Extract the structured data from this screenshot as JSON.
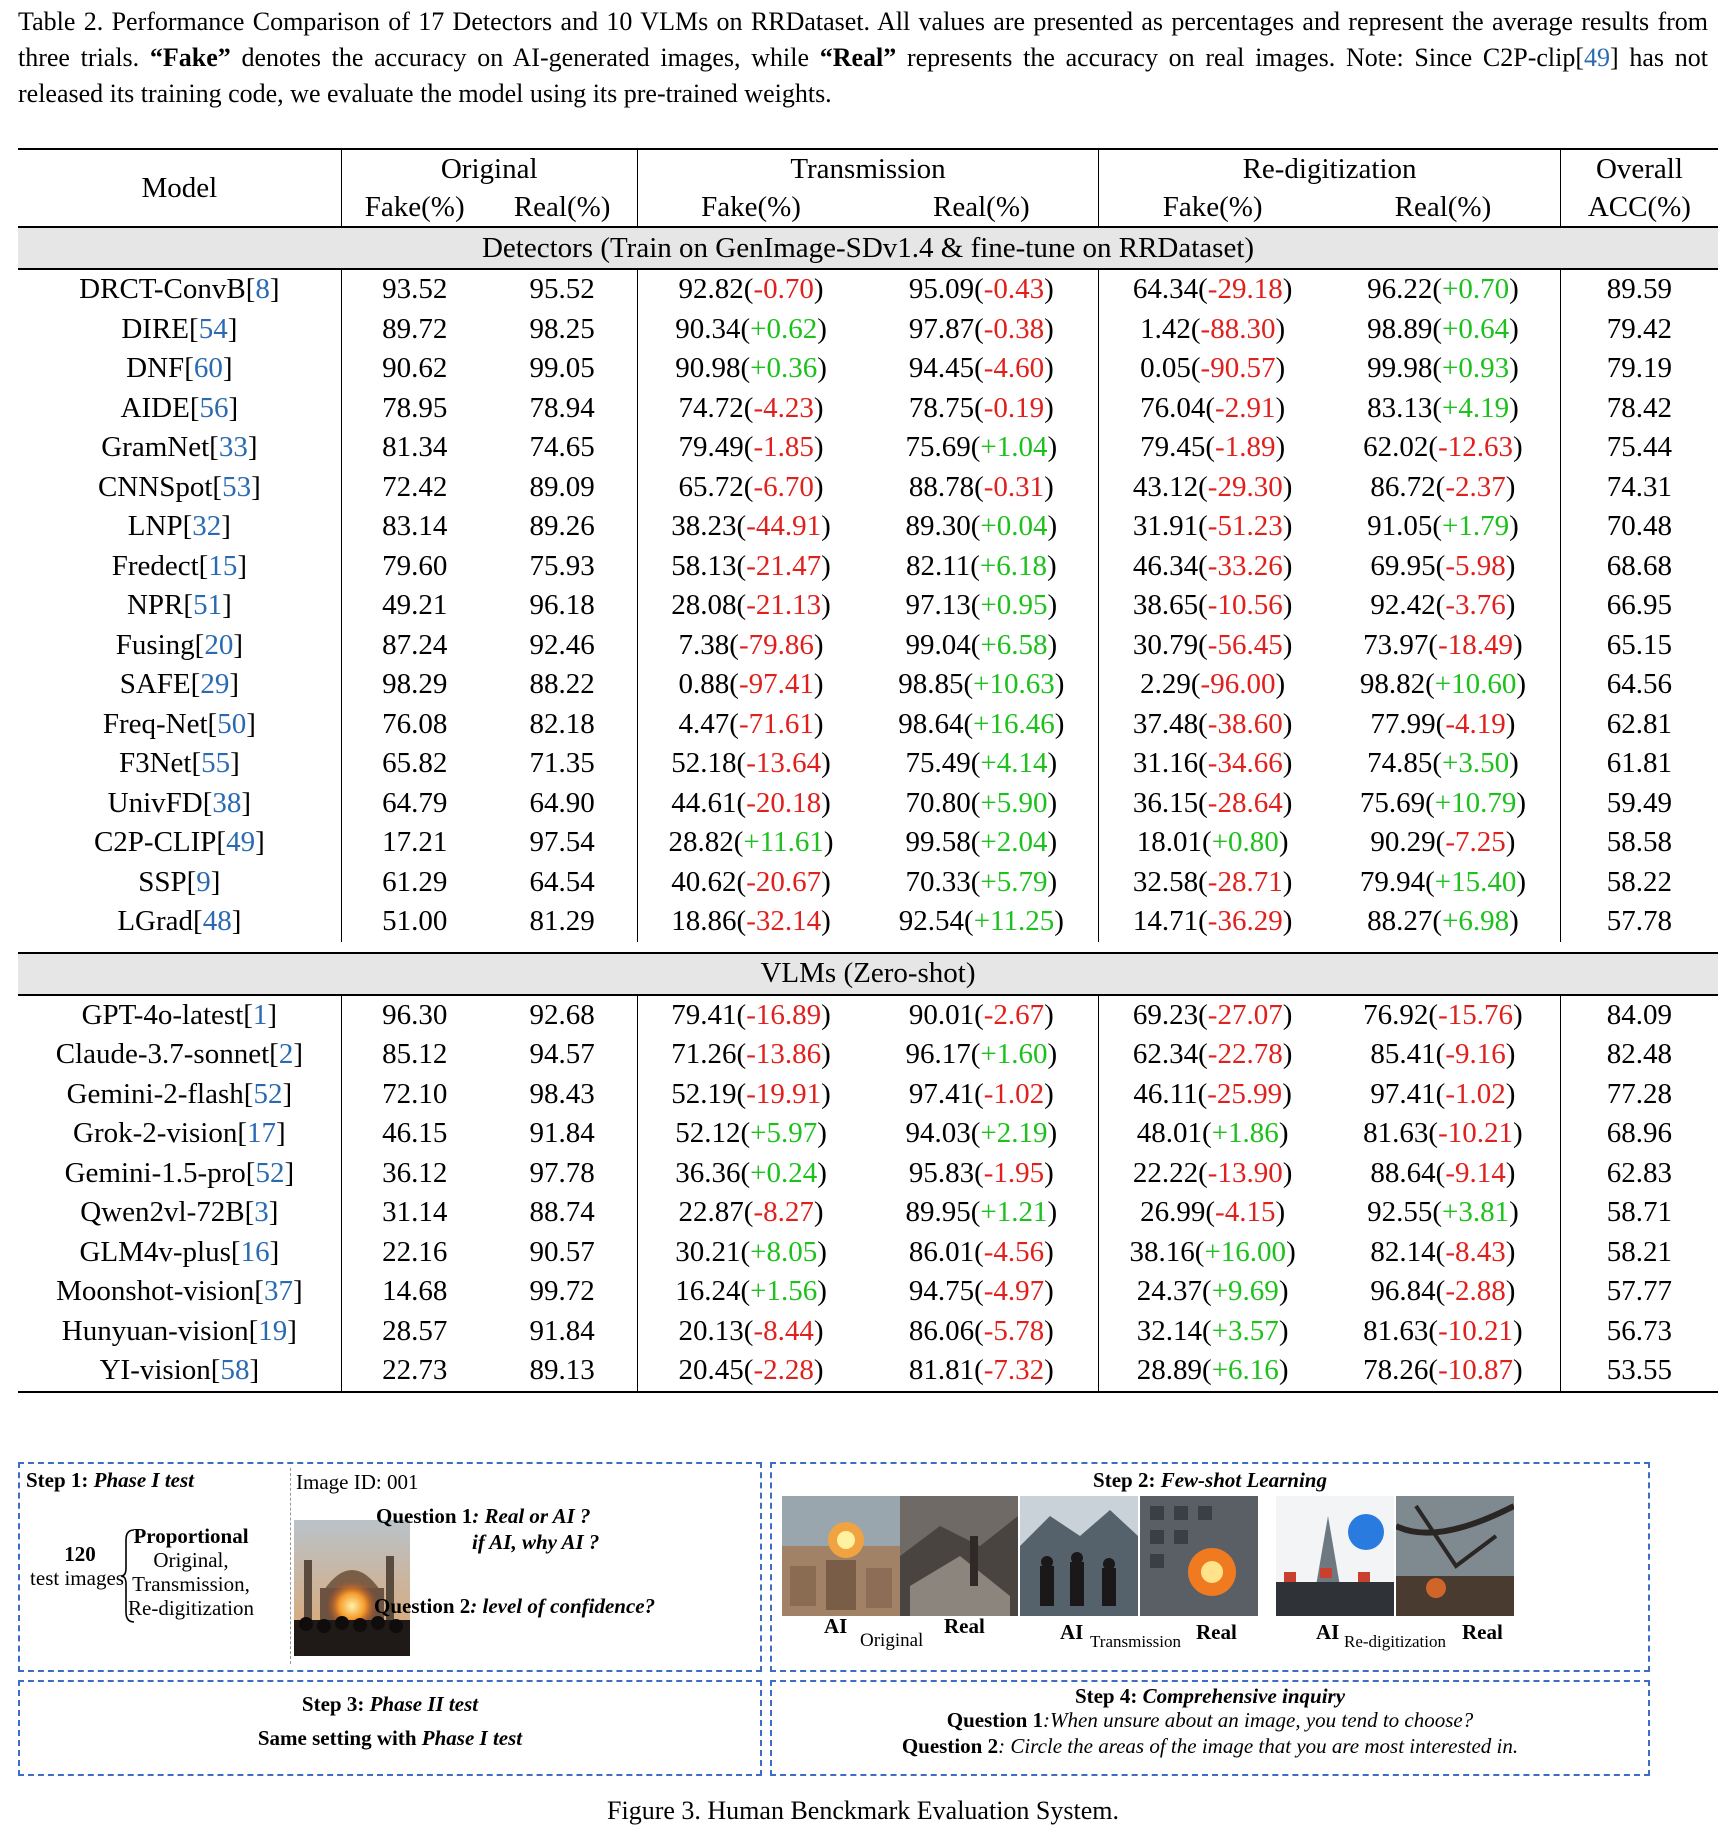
{
  "caption_top": {
    "prefix": "Table 2.  Performance Comparison of 17 Detectors and 10 VLMs on RRDataset.  All values are presented as percentages and represent the average results from three trials. ",
    "fake_term": "“Fake”",
    "mid1": " denotes the accuracy on AI-generated images, while ",
    "real_term": "“Real”",
    "mid2": " represents the accuracy on real images. Note: Since C2P-clip[",
    "cite": "49",
    "suffix": "] has not released its training code, we evaluate the model using its pre-trained weights."
  },
  "table": {
    "header": {
      "model": "Model",
      "original": "Original",
      "transmission": "Transmission",
      "redigitization": "Re-digitization",
      "overall": "Overall",
      "fake": "Fake(%)",
      "real": "Real(%)",
      "acc": "ACC(%)"
    },
    "sections": [
      {
        "title": "Detectors (Train on GenImage-SDv1.4 & fine-tune on RRDataset)",
        "rows": [
          {
            "name": "DRCT-ConvB",
            "ref": "8",
            "of": "93.52",
            "or": "95.52",
            "tf": "92.82",
            "tfd": "-0.70",
            "tr": "95.09",
            "trd": "-0.43",
            "rf": "64.34",
            "rfd": "-29.18",
            "rr": "96.22",
            "rrd": "+0.70",
            "acc": "89.59"
          },
          {
            "name": "DIRE",
            "ref": "54",
            "of": "89.72",
            "or": "98.25",
            "tf": "90.34",
            "tfd": "+0.62",
            "tr": "97.87",
            "trd": "-0.38",
            "rf": "1.42",
            "rfd": "-88.30",
            "rr": "98.89",
            "rrd": "+0.64",
            "acc": "79.42"
          },
          {
            "name": "DNF",
            "ref": "60",
            "of": "90.62",
            "or": "99.05",
            "tf": "90.98",
            "tfd": "+0.36",
            "tr": "94.45",
            "trd": "-4.60",
            "rf": "0.05",
            "rfd": "-90.57",
            "rr": "99.98",
            "rrd": "+0.93",
            "acc": "79.19"
          },
          {
            "name": "AIDE",
            "ref": "56",
            "of": "78.95",
            "or": "78.94",
            "tf": "74.72",
            "tfd": "-4.23",
            "tr": "78.75",
            "trd": "-0.19",
            "rf": "76.04",
            "rfd": "-2.91",
            "rr": "83.13",
            "rrd": "+4.19",
            "acc": "78.42"
          },
          {
            "name": "GramNet",
            "ref": "33",
            "of": "81.34",
            "or": "74.65",
            "tf": "79.49",
            "tfd": "-1.85",
            "tr": "75.69",
            "trd": "+1.04",
            "rf": "79.45",
            "rfd": "-1.89",
            "rr": "62.02",
            "rrd": "-12.63",
            "acc": "75.44"
          },
          {
            "name": "CNNSpot",
            "ref": "53",
            "of": "72.42",
            "or": "89.09",
            "tf": "65.72",
            "tfd": "-6.70",
            "tr": "88.78",
            "trd": "-0.31",
            "rf": "43.12",
            "rfd": "-29.30",
            "rr": "86.72",
            "rrd": "-2.37",
            "acc": "74.31"
          },
          {
            "name": "LNP",
            "ref": "32",
            "of": "83.14",
            "or": "89.26",
            "tf": "38.23",
            "tfd": "-44.91",
            "tr": "89.30",
            "trd": "+0.04",
            "rf": "31.91",
            "rfd": "-51.23",
            "rr": "91.05",
            "rrd": "+1.79",
            "acc": "70.48"
          },
          {
            "name": "Fredect",
            "ref": "15",
            "of": "79.60",
            "or": "75.93",
            "tf": "58.13",
            "tfd": "-21.47",
            "tr": "82.11",
            "trd": "+6.18",
            "rf": "46.34",
            "rfd": "-33.26",
            "rr": "69.95",
            "rrd": "-5.98",
            "acc": "68.68"
          },
          {
            "name": "NPR",
            "ref": "51",
            "of": "49.21",
            "or": "96.18",
            "tf": "28.08",
            "tfd": "-21.13",
            "tr": "97.13",
            "trd": "+0.95",
            "rf": "38.65",
            "rfd": "-10.56",
            "rr": "92.42",
            "rrd": "-3.76",
            "acc": "66.95"
          },
          {
            "name": "Fusing",
            "ref": "20",
            "of": "87.24",
            "or": "92.46",
            "tf": "7.38",
            "tfd": "-79.86",
            "tr": "99.04",
            "trd": "+6.58",
            "rf": "30.79",
            "rfd": "-56.45",
            "rr": "73.97",
            "rrd": "-18.49",
            "acc": "65.15"
          },
          {
            "name": "SAFE",
            "ref": "29",
            "of": "98.29",
            "or": "88.22",
            "tf": "0.88",
            "tfd": "-97.41",
            "tr": "98.85",
            "trd": "+10.63",
            "rf": "2.29",
            "rfd": "-96.00",
            "rr": "98.82",
            "rrd": "+10.60",
            "acc": "64.56"
          },
          {
            "name": "Freq-Net",
            "ref": "50",
            "of": "76.08",
            "or": "82.18",
            "tf": "4.47",
            "tfd": "-71.61",
            "tr": "98.64",
            "trd": "+16.46",
            "rf": "37.48",
            "rfd": "-38.60",
            "rr": "77.99",
            "rrd": "-4.19",
            "acc": "62.81"
          },
          {
            "name": "F3Net",
            "ref": "55",
            "of": "65.82",
            "or": "71.35",
            "tf": "52.18",
            "tfd": "-13.64",
            "tr": "75.49",
            "trd": "+4.14",
            "rf": "31.16",
            "rfd": "-34.66",
            "rr": "74.85",
            "rrd": "+3.50",
            "acc": "61.81"
          },
          {
            "name": "UnivFD",
            "ref": "38",
            "of": "64.79",
            "or": "64.90",
            "tf": "44.61",
            "tfd": "-20.18",
            "tr": "70.80",
            "trd": "+5.90",
            "rf": "36.15",
            "rfd": "-28.64",
            "rr": "75.69",
            "rrd": "+10.79",
            "acc": "59.49"
          },
          {
            "name": "C2P-CLIP",
            "ref": "49",
            "of": "17.21",
            "or": "97.54",
            "tf": "28.82",
            "tfd": "+11.61",
            "tr": "99.58",
            "trd": "+2.04",
            "rf": "18.01",
            "rfd": "+0.80",
            "rr": "90.29",
            "rrd": "-7.25",
            "acc": "58.58"
          },
          {
            "name": "SSP",
            "ref": "9",
            "of": "61.29",
            "or": "64.54",
            "tf": "40.62",
            "tfd": "-20.67",
            "tr": "70.33",
            "trd": "+5.79",
            "rf": "32.58",
            "rfd": "-28.71",
            "rr": "79.94",
            "rrd": "+15.40",
            "acc": "58.22"
          },
          {
            "name": "LGrad",
            "ref": "48",
            "of": "51.00",
            "or": "81.29",
            "tf": "18.86",
            "tfd": "-32.14",
            "tr": "92.54",
            "trd": "+11.25",
            "rf": "14.71",
            "rfd": "-36.29",
            "rr": "88.27",
            "rrd": "+6.98",
            "acc": "57.78"
          }
        ]
      },
      {
        "title": "VLMs (Zero-shot)",
        "rows": [
          {
            "name": "GPT-4o-latest",
            "ref": "1",
            "of": "96.30",
            "or": "92.68",
            "tf": "79.41",
            "tfd": "-16.89",
            "tr": "90.01",
            "trd": "-2.67",
            "rf": "69.23",
            "rfd": "-27.07",
            "rr": "76.92",
            "rrd": "-15.76",
            "acc": "84.09"
          },
          {
            "name": "Claude-3.7-sonnet",
            "ref": "2",
            "of": "85.12",
            "or": "94.57",
            "tf": "71.26",
            "tfd": "-13.86",
            "tr": "96.17",
            "trd": "+1.60",
            "rf": "62.34",
            "rfd": "-22.78",
            "rr": "85.41",
            "rrd": "-9.16",
            "acc": "82.48"
          },
          {
            "name": "Gemini-2-flash",
            "ref": "52",
            "of": "72.10",
            "or": "98.43",
            "tf": "52.19",
            "tfd": "-19.91",
            "tr": "97.41",
            "trd": "-1.02",
            "rf": "46.11",
            "rfd": "-25.99",
            "rr": "97.41",
            "rrd": "-1.02",
            "acc": "77.28"
          },
          {
            "name": "Grok-2-vision",
            "ref": "17",
            "of": "46.15",
            "or": "91.84",
            "tf": "52.12",
            "tfd": "+5.97",
            "tr": "94.03",
            "trd": "+2.19",
            "rf": "48.01",
            "rfd": "+1.86",
            "rr": "81.63",
            "rrd": "-10.21",
            "acc": "68.96"
          },
          {
            "name": "Gemini-1.5-pro",
            "ref": "52",
            "of": "36.12",
            "or": "97.78",
            "tf": "36.36",
            "tfd": "+0.24",
            "tr": "95.83",
            "trd": "-1.95",
            "rf": "22.22",
            "rfd": "-13.90",
            "rr": "88.64",
            "rrd": "-9.14",
            "acc": "62.83"
          },
          {
            "name": "Qwen2vl-72B",
            "ref": "3",
            "of": "31.14",
            "or": "88.74",
            "tf": "22.87",
            "tfd": "-8.27",
            "tr": "89.95",
            "trd": "+1.21",
            "rf": "26.99",
            "rfd": "-4.15",
            "rr": "92.55",
            "rrd": "+3.81",
            "acc": "58.71"
          },
          {
            "name": "GLM4v-plus",
            "ref": "16",
            "of": "22.16",
            "or": "90.57",
            "tf": "30.21",
            "tfd": "+8.05",
            "tr": "86.01",
            "trd": "-4.56",
            "rf": "38.16",
            "rfd": "+16.00",
            "rr": "82.14",
            "rrd": "-8.43",
            "acc": "58.21"
          },
          {
            "name": "Moonshot-vision",
            "ref": "37",
            "of": "14.68",
            "or": "99.72",
            "tf": "16.24",
            "tfd": "+1.56",
            "tr": "94.75",
            "trd": "-4.97",
            "rf": "24.37",
            "rfd": "+9.69",
            "rr": "96.84",
            "rrd": "-2.88",
            "acc": "57.77"
          },
          {
            "name": "Hunyuan-vision",
            "ref": "19",
            "of": "28.57",
            "or": "91.84",
            "tf": "20.13",
            "tfd": "-8.44",
            "tr": "86.06",
            "trd": "-5.78",
            "rf": "32.14",
            "rfd": "+3.57",
            "rr": "81.63",
            "rrd": "-10.21",
            "acc": "56.73"
          },
          {
            "name": "YI-vision",
            "ref": "58",
            "of": "22.73",
            "or": "89.13",
            "tf": "20.45",
            "tfd": "-2.28",
            "tr": "81.81",
            "trd": "-7.32",
            "rf": "28.89",
            "rfd": "+6.16",
            "rr": "78.26",
            "rrd": "-10.87",
            "acc": "53.55"
          }
        ]
      }
    ]
  },
  "figure": {
    "step1": {
      "label": "Step 1: ",
      "title": "Phase I test",
      "count": "120",
      "count_label": "test images",
      "prop": "Proportional",
      "items": [
        "Original,",
        "Transmission,",
        "Re-digitization"
      ],
      "image_id": "Image ID: 001"
    },
    "questions": {
      "q1_label": "Question 1",
      "q1_a": ": Real or AI ?",
      "q1_b": "if AI, why AI ?",
      "q2_label": "Question 2",
      "q2_text": ": level of confidence?"
    },
    "step2": {
      "label": "Step 2: ",
      "title": "Few-shot Learning",
      "ai": "AI",
      "real": "Real",
      "original": "Original",
      "transmission": "Transmission",
      "redigitization": "Re-digitization"
    },
    "step3": {
      "label": "Step 3: ",
      "title": "Phase II test",
      "line_prefix": "Same setting  with ",
      "line_title": "Phase I test"
    },
    "step4": {
      "label": "Step 4: ",
      "title": "Comprehensive inquiry",
      "q1_label": "Question 1",
      "q1_text": ":When unsure about an image, you tend to choose?",
      "q2_label": "Question 2",
      "q2_text": ": Circle the areas of the image that you are most interested in."
    },
    "caption": "Figure 3. Human Benckmark Evaluation System."
  }
}
